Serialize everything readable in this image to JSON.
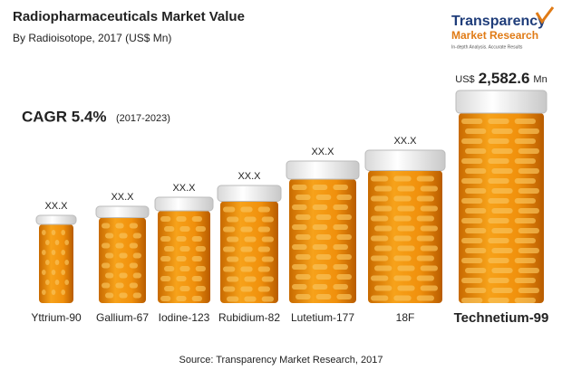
{
  "chart_data": {
    "type": "bar",
    "title": "Radiopharmaceuticals Market Value",
    "subtitle": "By Radioisotope, 2017 (US$ Mn)",
    "annotation": {
      "cagr": "CAGR 5.4%",
      "period": "(2017-2023)"
    },
    "brand": {
      "name": "Transparency",
      "line2": "Market Research",
      "tagline": "In-depth Analysis. Accurate Results"
    },
    "categories": [
      "Yttrium-90",
      "Gallium-67",
      "Iodine-123",
      "Rubidium-82",
      "Lutetium-177",
      "18F",
      "Technetium-99"
    ],
    "values": [
      null,
      null,
      null,
      null,
      null,
      null,
      2582.6
    ],
    "value_labels": [
      "XX.X",
      "XX.X",
      "XX.X",
      "XX.X",
      "XX.X",
      "XX.X",
      "2,582.6"
    ],
    "value_prefix": "US$",
    "value_suffix": "Mn",
    "source": "Source: Transparency Market Research, 2017"
  }
}
